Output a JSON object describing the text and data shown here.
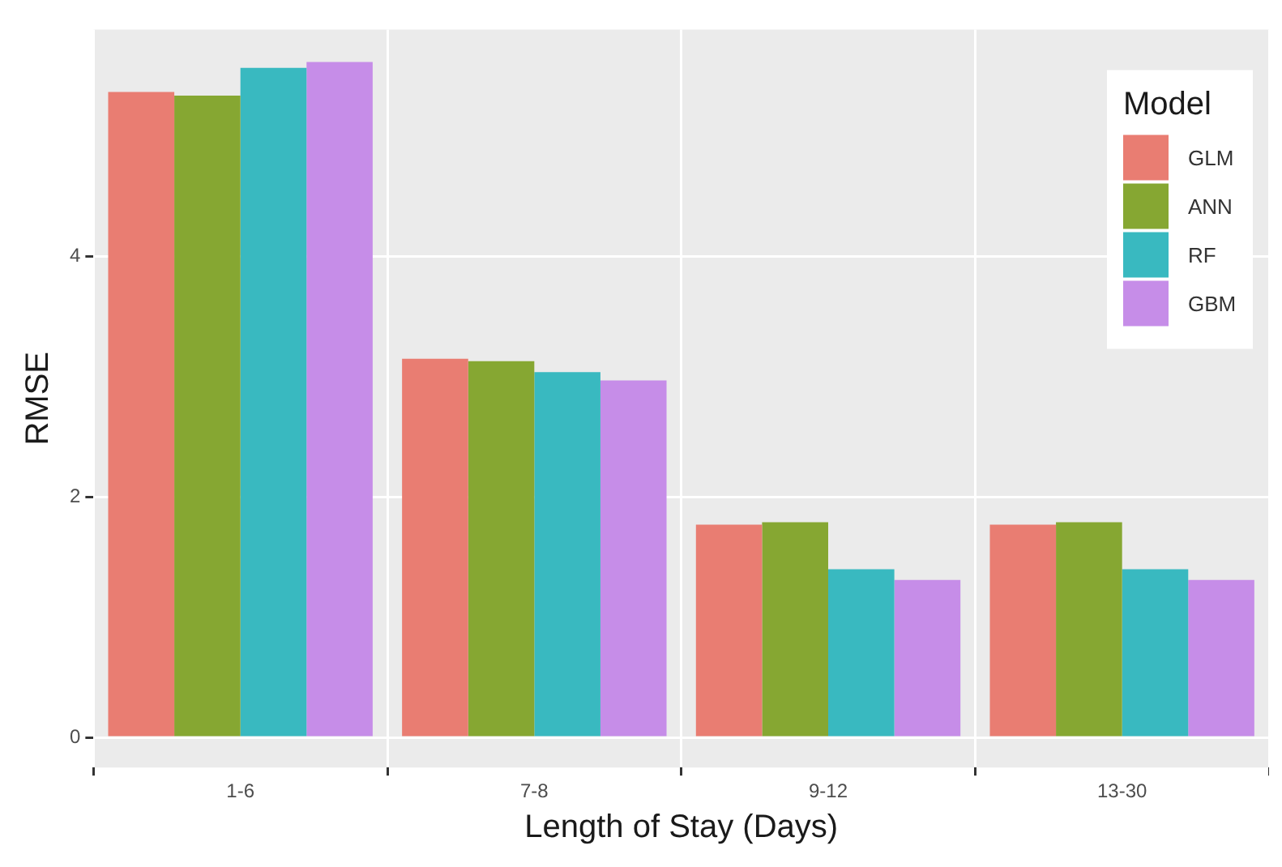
{
  "chart_data": {
    "type": "bar",
    "xlabel": "Length of Stay (Days)",
    "ylabel": "RMSE",
    "legend_title": "Model",
    "categories": [
      "1-6",
      "7-8",
      "9-12",
      "13-30"
    ],
    "series": [
      {
        "name": "GLM",
        "color": "#e97d72",
        "values": [
          5.37,
          3.15,
          1.77,
          1.77
        ]
      },
      {
        "name": "ANN",
        "color": "#86a732",
        "values": [
          5.34,
          3.13,
          1.79,
          1.79
        ]
      },
      {
        "name": "RF",
        "color": "#39b9c0",
        "values": [
          5.57,
          3.04,
          1.4,
          1.4
        ]
      },
      {
        "name": "GBM",
        "color": "#c68de8",
        "values": [
          5.62,
          2.97,
          1.31,
          1.31
        ]
      }
    ],
    "ylim": [
      -0.25,
      5.89
    ],
    "yticks": [
      0,
      2,
      4
    ],
    "grid": true,
    "legend": "top right"
  }
}
